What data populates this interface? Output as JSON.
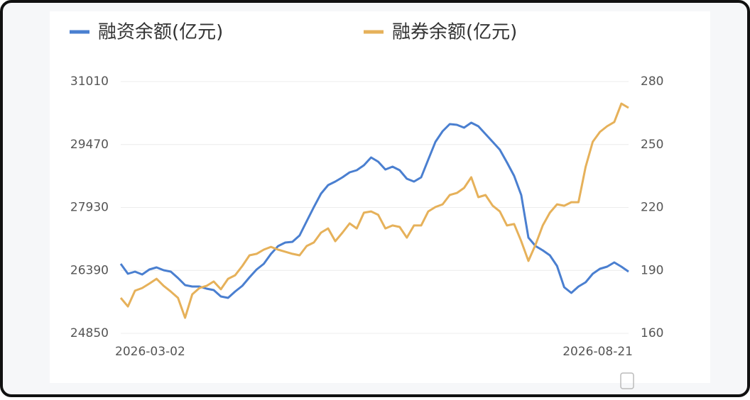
{
  "chart_data": {
    "type": "line",
    "categories": [
      "2026-03-02",
      null,
      null,
      null,
      null,
      null,
      null,
      null,
      null,
      null,
      null,
      null,
      null,
      null,
      null,
      null,
      null,
      null,
      null,
      null,
      null,
      null,
      null,
      null,
      null,
      null,
      null,
      null,
      null,
      null,
      null,
      null,
      null,
      null,
      null,
      null,
      null,
      null,
      null,
      null,
      null,
      null,
      null,
      null,
      null,
      null,
      null,
      null,
      null,
      null,
      null,
      null,
      null,
      null,
      null,
      null,
      null,
      null,
      null,
      null,
      null,
      null,
      null,
      null,
      null,
      null,
      null,
      null,
      null,
      null,
      null,
      "2026-08-21"
    ],
    "series": [
      {
        "name": "融资余额(亿元)",
        "color": "#4a7fd0",
        "axis": "y",
        "values": [
          26550,
          26308,
          26360,
          26290,
          26412,
          26464,
          26394,
          26360,
          26203,
          26030,
          25995,
          25995,
          25943,
          25908,
          25752,
          25718,
          25874,
          26013,
          26221,
          26412,
          26550,
          26793,
          26984,
          27071,
          27088,
          27245,
          27592,
          27939,
          28268,
          28477,
          28563,
          28667,
          28789,
          28841,
          28962,
          29153,
          29049,
          28858,
          28928,
          28841,
          28633,
          28563,
          28667,
          29101,
          29535,
          29795,
          29969,
          29951,
          29882,
          30004,
          29917,
          29726,
          29535,
          29344,
          29032,
          28702,
          28234,
          27193,
          26984,
          26880,
          26759,
          26498,
          25978,
          25839,
          25995,
          26099,
          26308,
          26429,
          26481,
          26585,
          26481,
          26360
        ]
      },
      {
        "name": "融券余额(亿元)",
        "color": "#e6b15a",
        "axis": "y2",
        "values": [
          176.9,
          172.8,
          180.3,
          181.6,
          183.7,
          186.0,
          182.6,
          179.9,
          176.9,
          167.4,
          178.6,
          181.6,
          182.6,
          184.7,
          181.0,
          186.0,
          187.7,
          192.1,
          197.2,
          197.9,
          199.9,
          201.2,
          199.9,
          198.9,
          197.9,
          197.2,
          201.6,
          203.3,
          208.0,
          210.0,
          203.9,
          208.0,
          212.4,
          210.0,
          217.5,
          218.1,
          216.5,
          210.0,
          211.4,
          210.7,
          205.6,
          211.4,
          211.4,
          218.1,
          220.2,
          221.5,
          225.9,
          226.9,
          229.3,
          234.4,
          224.9,
          225.9,
          220.8,
          218.1,
          211.4,
          212.1,
          203.9,
          194.5,
          202.3,
          211.4,
          217.5,
          221.5,
          220.8,
          222.5,
          222.5,
          239.4,
          251.3,
          256.0,
          258.7,
          260.7,
          269.5,
          267.5
        ]
      }
    ],
    "ylim": [
      24850,
      31010
    ],
    "yticks": [
      24850,
      26390,
      27930,
      29470,
      31010
    ],
    "y2lim": [
      160,
      280
    ],
    "y2ticks": [
      160,
      190,
      220,
      250,
      280
    ],
    "grid": true
  }
}
